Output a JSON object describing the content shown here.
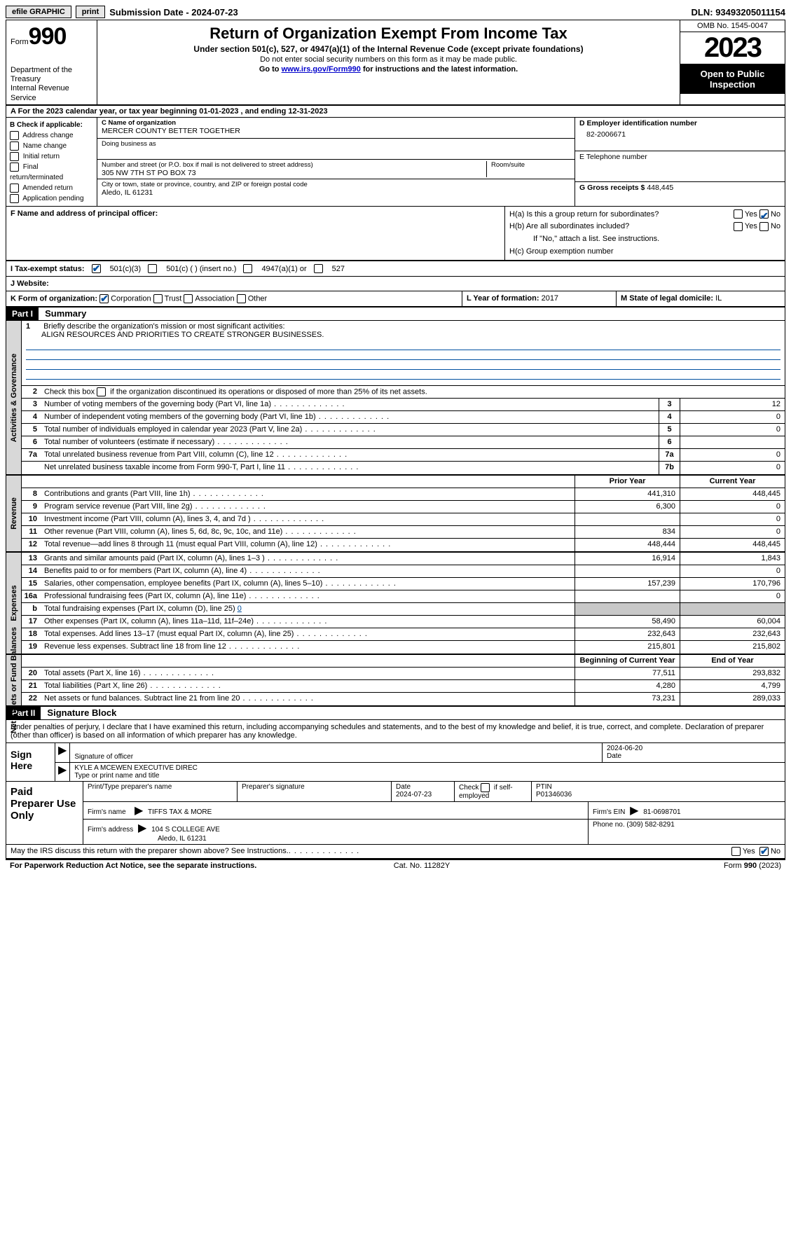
{
  "topbar": {
    "efile": "efile GRAPHIC",
    "print": "print",
    "submission": "Submission Date - 2024-07-23",
    "dln_label": "DLN:",
    "dln": "93493205011154"
  },
  "header": {
    "form_prefix": "Form",
    "form_no": "990",
    "title": "Return of Organization Exempt From Income Tax",
    "subtitle": "Under section 501(c), 527, or 4947(a)(1) of the Internal Revenue Code (except private foundations)",
    "note1": "Do not enter social security numbers on this form as it may be made public.",
    "note2_pre": "Go to ",
    "note2_link": "www.irs.gov/Form990",
    "note2_post": " for instructions and the latest information.",
    "dept": "Department of the Treasury\nInternal Revenue Service",
    "omb": "OMB No. 1545-0047",
    "year": "2023",
    "otp": "Open to Public Inspection"
  },
  "period": {
    "text_a": "A For the 2023 calendar year, or tax year beginning ",
    "begin": "01-01-2023",
    "mid": " , and ending ",
    "end": "12-31-2023"
  },
  "boxB": {
    "label": "B Check if applicable:",
    "items": [
      "Address change",
      "Name change",
      "Initial return",
      "Final return/terminated",
      "Amended return",
      "Application pending"
    ]
  },
  "boxC": {
    "name_label": "C Name of organization",
    "name": "MERCER COUNTY BETTER TOGETHER",
    "dba_label": "Doing business as",
    "street_label": "Number and street (or P.O. box if mail is not delivered to street address)",
    "room_label": "Room/suite",
    "street": "305 NW 7TH ST PO BOX 73",
    "city_label": "City or town, state or province, country, and ZIP or foreign postal code",
    "city": "Aledo, IL  61231"
  },
  "boxD": {
    "label": "D Employer identification number",
    "value": "82-2006671"
  },
  "boxE": {
    "label": "E Telephone number",
    "value": ""
  },
  "boxG": {
    "label": "G Gross receipts $",
    "value": "448,445"
  },
  "boxF": {
    "label": "F  Name and address of principal officer:"
  },
  "boxH": {
    "a": "H(a)  Is this a group return for subordinates?",
    "b": "H(b)  Are all subordinates included?",
    "note": "If \"No,\" attach a list. See instructions.",
    "c": "H(c)  Group exemption number",
    "yes": "Yes",
    "no": "No"
  },
  "boxI": {
    "label": "I   Tax-exempt status:",
    "o1": "501(c)(3)",
    "o2": "501(c) (  ) (insert no.)",
    "o3": "4947(a)(1) or",
    "o4": "527"
  },
  "boxJ": {
    "label": "J   Website:"
  },
  "boxK": {
    "label": "K Form of organization:",
    "o1": "Corporation",
    "o2": "Trust",
    "o3": "Association",
    "o4": "Other"
  },
  "boxL": {
    "label": "L Year of formation:",
    "value": "2017"
  },
  "boxM": {
    "label": "M State of legal domicile:",
    "value": "IL"
  },
  "partI": {
    "tag": "Part I",
    "title": "Summary",
    "line1_label": "Briefly describe the organization's mission or most significant activities:",
    "mission": "ALIGN RESOURCES AND PRIORITIES TO CREATE STRONGER BUSINESSES.",
    "line2": "Check this box        if the organization discontinued its operations or disposed of more than 25% of its net assets.",
    "sections": {
      "gov": "Activities & Governance",
      "rev": "Revenue",
      "exp": "Expenses",
      "net": "Net Assets or Fund Balances"
    },
    "col_prior": "Prior Year",
    "col_current": "Current Year",
    "col_begin": "Beginning of Current Year",
    "col_end": "End of Year",
    "rows_gov": [
      {
        "n": "3",
        "desc": "Number of voting members of the governing body (Part VI, line 1a)",
        "box": "3",
        "v": "12"
      },
      {
        "n": "4",
        "desc": "Number of independent voting members of the governing body (Part VI, line 1b)",
        "box": "4",
        "v": "0"
      },
      {
        "n": "5",
        "desc": "Total number of individuals employed in calendar year 2023 (Part V, line 2a)",
        "box": "5",
        "v": "0"
      },
      {
        "n": "6",
        "desc": "Total number of volunteers (estimate if necessary)",
        "box": "6",
        "v": ""
      },
      {
        "n": "7a",
        "desc": "Total unrelated business revenue from Part VIII, column (C), line 12",
        "box": "7a",
        "v": "0"
      },
      {
        "n": "",
        "desc": "Net unrelated business taxable income from Form 990-T, Part I, line 11",
        "box": "7b",
        "v": "0"
      }
    ],
    "rows_rev": [
      {
        "n": "8",
        "desc": "Contributions and grants (Part VIII, line 1h)",
        "py": "441,310",
        "cy": "448,445"
      },
      {
        "n": "9",
        "desc": "Program service revenue (Part VIII, line 2g)",
        "py": "6,300",
        "cy": "0"
      },
      {
        "n": "10",
        "desc": "Investment income (Part VIII, column (A), lines 3, 4, and 7d )",
        "py": "",
        "cy": "0"
      },
      {
        "n": "11",
        "desc": "Other revenue (Part VIII, column (A), lines 5, 6d, 8c, 9c, 10c, and 11e)",
        "py": "834",
        "cy": "0"
      },
      {
        "n": "12",
        "desc": "Total revenue—add lines 8 through 11 (must equal Part VIII, column (A), line 12)",
        "py": "448,444",
        "cy": "448,445"
      }
    ],
    "rows_exp": [
      {
        "n": "13",
        "desc": "Grants and similar amounts paid (Part IX, column (A), lines 1–3 )",
        "py": "16,914",
        "cy": "1,843"
      },
      {
        "n": "14",
        "desc": "Benefits paid to or for members (Part IX, column (A), line 4)",
        "py": "",
        "cy": "0"
      },
      {
        "n": "15",
        "desc": "Salaries, other compensation, employee benefits (Part IX, column (A), lines 5–10)",
        "py": "157,239",
        "cy": "170,796"
      },
      {
        "n": "16a",
        "desc": "Professional fundraising fees (Part IX, column (A), line 11e)",
        "py": "",
        "cy": "0"
      },
      {
        "n": "b",
        "desc": "Total fundraising expenses (Part IX, column (D), line 25) 0",
        "py": "SHADE",
        "cy": "SHADE"
      },
      {
        "n": "17",
        "desc": "Other expenses (Part IX, column (A), lines 11a–11d, 11f–24e)",
        "py": "58,490",
        "cy": "60,004"
      },
      {
        "n": "18",
        "desc": "Total expenses. Add lines 13–17 (must equal Part IX, column (A), line 25)",
        "py": "232,643",
        "cy": "232,643"
      },
      {
        "n": "19",
        "desc": "Revenue less expenses. Subtract line 18 from line 12",
        "py": "215,801",
        "cy": "215,802"
      }
    ],
    "rows_net": [
      {
        "n": "20",
        "desc": "Total assets (Part X, line 16)",
        "py": "77,511",
        "cy": "293,832"
      },
      {
        "n": "21",
        "desc": "Total liabilities (Part X, line 26)",
        "py": "4,280",
        "cy": "4,799"
      },
      {
        "n": "22",
        "desc": "Net assets or fund balances. Subtract line 21 from line 20",
        "py": "73,231",
        "cy": "289,033"
      }
    ]
  },
  "partII": {
    "tag": "Part II",
    "title": "Signature Block",
    "perjury": "Under penalties of perjury, I declare that I have examined this return, including accompanying schedules and statements, and to the best of my knowledge and belief, it is true, correct, and complete. Declaration of preparer (other than officer) is based on all information of which preparer has any knowledge."
  },
  "sign": {
    "label": "Sign Here",
    "sig_label": "Signature of officer",
    "date_label": "Date",
    "date": "2024-06-20",
    "name": "KYLE A MCEWEN  EXECUTIVE DIREC",
    "name_label": "Type or print name and title"
  },
  "prep": {
    "label": "Paid Preparer Use Only",
    "h1": "Print/Type preparer's name",
    "h2": "Preparer's signature",
    "h3": "Date",
    "date": "2024-07-23",
    "h4_a": "Check",
    "h4_b": "if self-employed",
    "h5": "PTIN",
    "ptin": "P01346036",
    "firm_name_l": "Firm's name",
    "firm_name": "TIFFS TAX & MORE",
    "firm_ein_l": "Firm's EIN",
    "firm_ein": "81-0698701",
    "firm_addr_l": "Firm's address",
    "firm_addr1": "104 S COLLEGE AVE",
    "firm_addr2": "Aledo, IL  61231",
    "phone_l": "Phone no.",
    "phone": "(309) 582-8291"
  },
  "irs_q": "May the IRS discuss this return with the preparer shown above? See Instructions.",
  "footer": {
    "left": "For Paperwork Reduction Act Notice, see the separate instructions.",
    "mid": "Cat. No. 11282Y",
    "right_a": "Form ",
    "right_b": "990",
    "right_c": " (2023)"
  },
  "colors": {
    "link": "#0050a0",
    "shade": "#c8c8c8",
    "side": "#d8d8d8"
  }
}
